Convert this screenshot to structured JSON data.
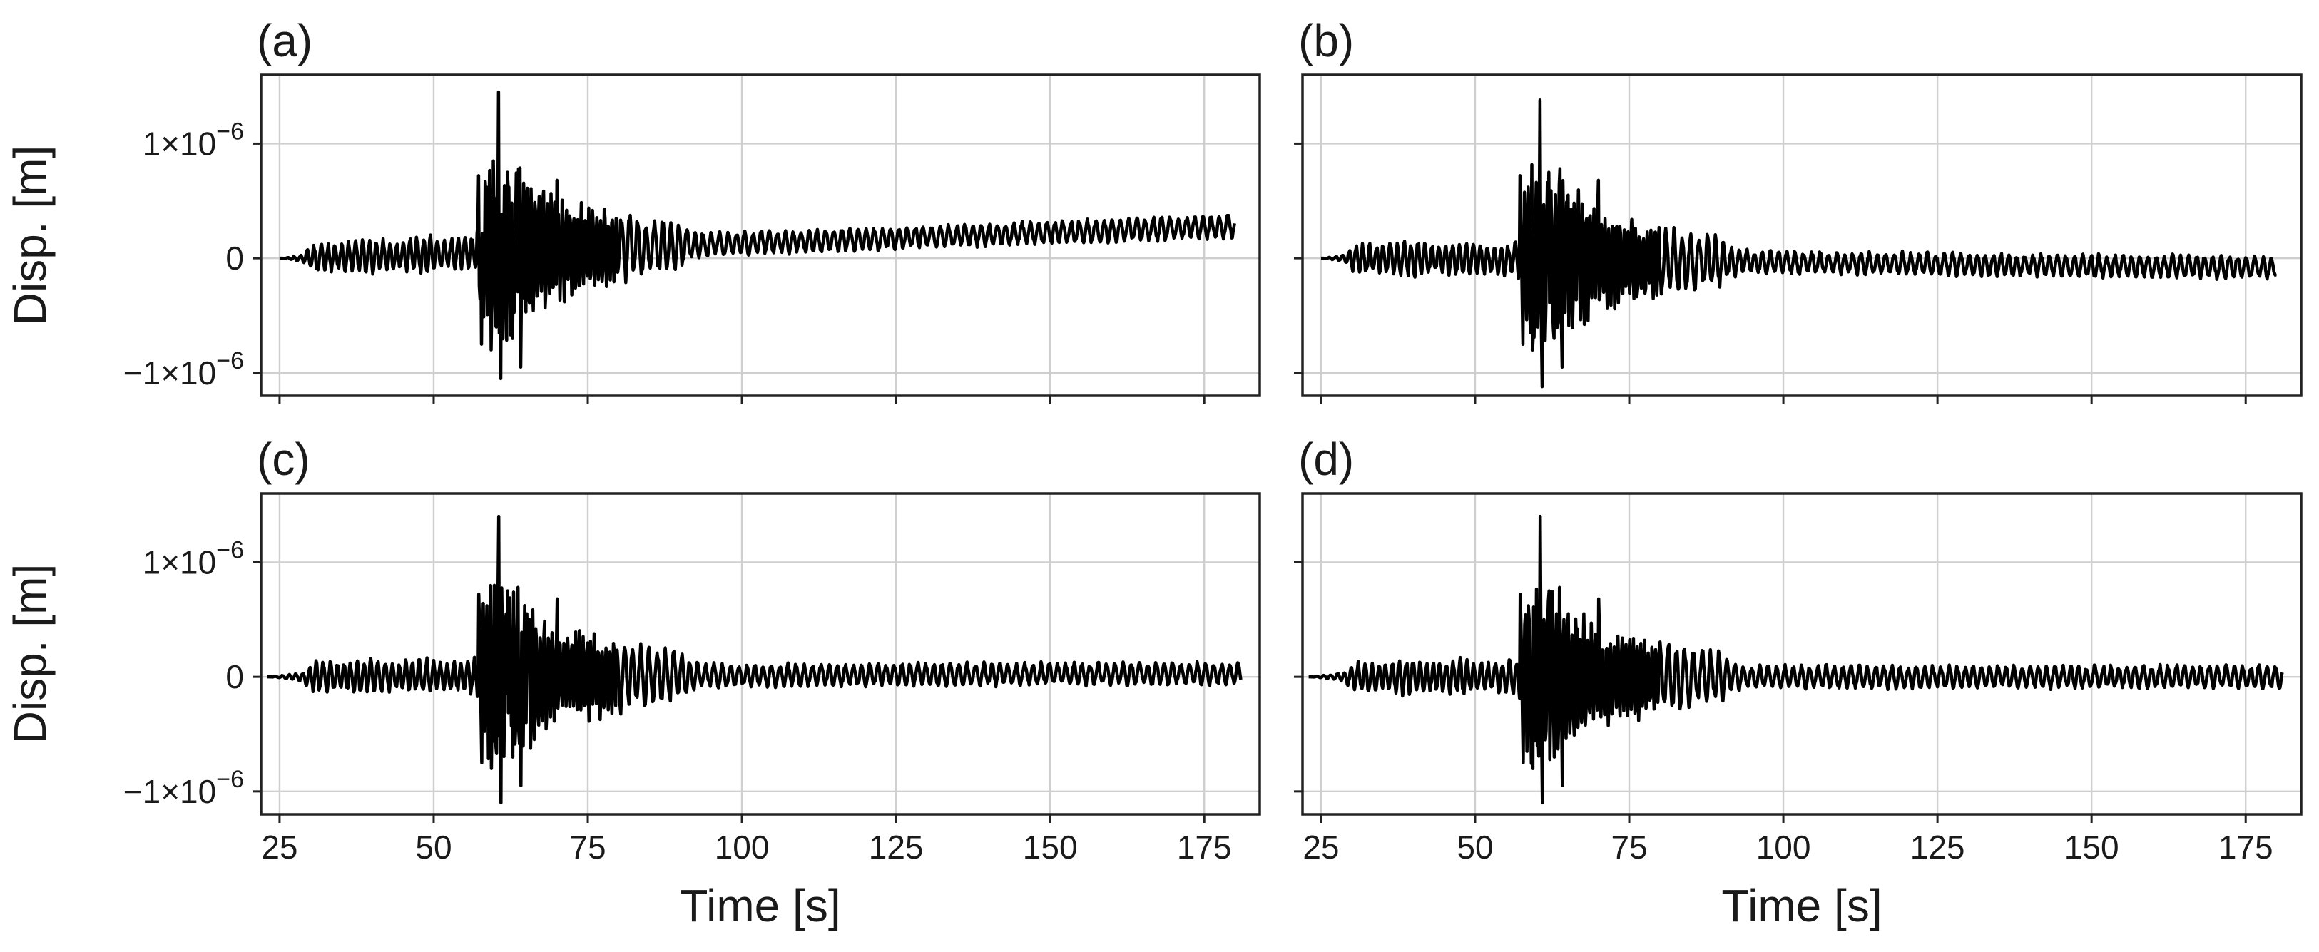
{
  "chart_data": [
    {
      "type": "line",
      "panel_label": "(a)",
      "ylabel": "Disp. [m]",
      "xlabel": "",
      "xlim": [
        22,
        184
      ],
      "ylim": [
        -1.2e-06,
        1.6e-06
      ],
      "xticks": [
        25,
        50,
        75,
        100,
        125,
        150,
        175
      ],
      "yticks": [
        -1e-06,
        0,
        1e-06
      ],
      "ytick_labels": [
        {
          "base": "−1×10",
          "exp": "−6"
        },
        {
          "base": "0",
          "exp": ""
        },
        {
          "base": "1×10",
          "exp": "−6"
        }
      ],
      "xtick_labels_visible": false,
      "ytick_labels_visible": true,
      "grid": true,
      "series": [
        {
          "x_start": 25,
          "x_end": 180,
          "drift_end": 2.8e-07,
          "peak_max": 1.45e-06,
          "peak_min": -1.05e-06,
          "peak_time": 60.5,
          "onset": 57,
          "color": "#000000"
        }
      ]
    },
    {
      "type": "line",
      "panel_label": "(b)",
      "ylabel": "",
      "xlabel": "",
      "xlim": [
        22,
        184
      ],
      "ylim": [
        -1.2e-06,
        1.6e-06
      ],
      "xticks": [
        25,
        50,
        75,
        100,
        125,
        150,
        175
      ],
      "yticks": [
        -1e-06,
        0,
        1e-06
      ],
      "xtick_labels_visible": false,
      "ytick_labels_visible": false,
      "grid": true,
      "series": [
        {
          "x_start": 25,
          "x_end": 180,
          "drift_end": -8e-08,
          "peak_max": 1.38e-06,
          "peak_min": -1.12e-06,
          "peak_time": 60.5,
          "onset": 57,
          "color": "#000000"
        }
      ]
    },
    {
      "type": "line",
      "panel_label": "(c)",
      "ylabel": "Disp. [m]",
      "xlabel": "Time [s]",
      "xlim": [
        22,
        184
      ],
      "ylim": [
        -1.2e-06,
        1.6e-06
      ],
      "xticks": [
        25,
        50,
        75,
        100,
        125,
        150,
        175
      ],
      "xtick_labels": [
        "25",
        "50",
        "75",
        "100",
        "125",
        "150",
        "175"
      ],
      "yticks": [
        -1e-06,
        0,
        1e-06
      ],
      "ytick_labels": [
        {
          "base": "−1×10",
          "exp": "−6"
        },
        {
          "base": "0",
          "exp": ""
        },
        {
          "base": "1×10",
          "exp": "−6"
        }
      ],
      "xtick_labels_visible": true,
      "ytick_labels_visible": true,
      "grid": true,
      "series": [
        {
          "x_start": 23,
          "x_end": 181,
          "drift_end": 3e-08,
          "peak_max": 1.4e-06,
          "peak_min": -1.1e-06,
          "peak_time": 60.5,
          "onset": 57,
          "color": "#000000"
        }
      ]
    },
    {
      "type": "line",
      "panel_label": "(d)",
      "ylabel": "",
      "xlabel": "Time [s]",
      "xlim": [
        22,
        184
      ],
      "ylim": [
        -1.2e-06,
        1.6e-06
      ],
      "xticks": [
        25,
        50,
        75,
        100,
        125,
        150,
        175
      ],
      "xtick_labels": [
        "25",
        "50",
        "75",
        "100",
        "125",
        "150",
        "175"
      ],
      "yticks": [
        -1e-06,
        0,
        1e-06
      ],
      "xtick_labels_visible": true,
      "ytick_labels_visible": false,
      "grid": true,
      "series": [
        {
          "x_start": 23,
          "x_end": 181,
          "drift_end": 0,
          "peak_max": 1.4e-06,
          "peak_min": -1.1e-06,
          "peak_time": 60.5,
          "onset": 57,
          "color": "#000000"
        }
      ]
    }
  ]
}
